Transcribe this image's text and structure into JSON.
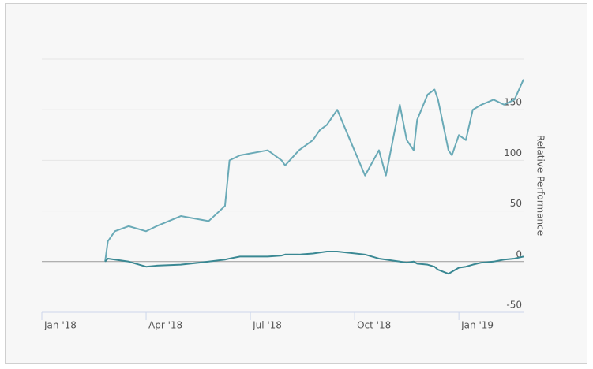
{
  "chart_data": {
    "type": "line",
    "y_axis_label": "Relative Performance",
    "x": [
      1.82,
      1.9,
      2.1,
      2.5,
      3.0,
      3.3,
      4.0,
      4.8,
      5.27,
      5.4,
      5.7,
      6.5,
      6.9,
      7.0,
      7.4,
      7.8,
      8.0,
      8.2,
      8.5,
      9.3,
      9.7,
      9.9,
      10.3,
      10.5,
      10.7,
      10.8,
      11.1,
      11.3,
      11.4,
      11.7,
      11.8,
      12.0,
      12.2,
      12.4,
      12.65,
      13.0,
      13.3,
      13.6,
      13.86
    ],
    "series": [
      {
        "color": "#6aaab7",
        "values": [
          0,
          20,
          30,
          35,
          30,
          35,
          45,
          40,
          55,
          100,
          105,
          110,
          100,
          95,
          110,
          120,
          130,
          135,
          150,
          85,
          110,
          85,
          155,
          120,
          110,
          140,
          165,
          170,
          160,
          110,
          105,
          125,
          120,
          150,
          155,
          160,
          155,
          160,
          180
        ]
      },
      {
        "color": "#3a8893",
        "values": [
          0,
          3,
          2,
          0,
          -5,
          -4,
          -3,
          0,
          2,
          3,
          5,
          5,
          6,
          7,
          7,
          8,
          9,
          10,
          10,
          7,
          3,
          2,
          0,
          -1,
          0,
          -2,
          -3,
          -5,
          -8,
          -12,
          -10,
          -6,
          -5,
          -3,
          -1,
          0,
          2,
          3,
          5
        ]
      }
    ],
    "xlim": [
      0,
      13.86
    ],
    "xticks": [
      {
        "value": 0,
        "label": "Jan '18"
      },
      {
        "value": 3,
        "label": "Apr '18"
      },
      {
        "value": 6,
        "label": "Jul '18"
      },
      {
        "value": 9,
        "label": "Oct '18"
      },
      {
        "value": 12,
        "label": "Jan '19"
      }
    ],
    "ylim": [
      -50,
      200
    ],
    "yticks": [
      -50,
      0,
      50,
      100,
      150
    ],
    "grid": true
  }
}
